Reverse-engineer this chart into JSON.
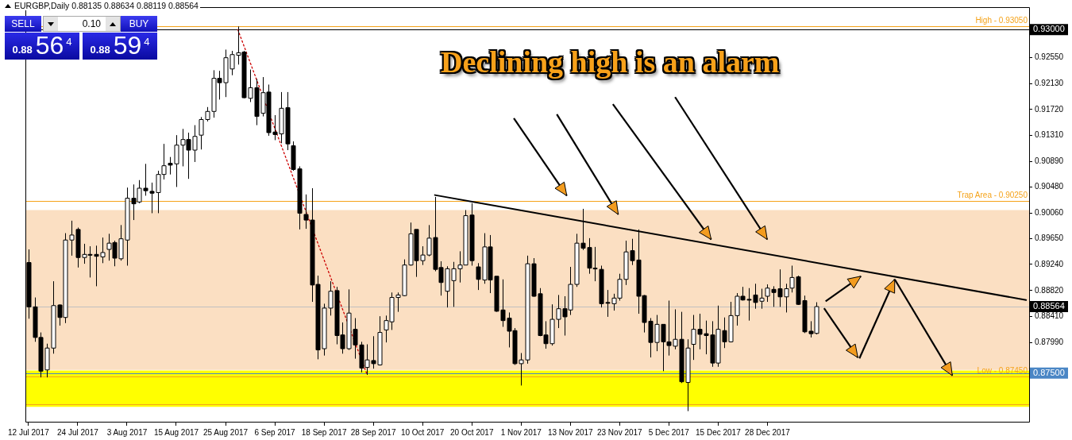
{
  "chart_data": {
    "type": "candlestick",
    "title": "Declining high is an alarm",
    "annotations": [
      "EURGBP,Daily 0.88135 0.88634 0.88119 0.88564",
      "SELL",
      "0.10",
      "BUY",
      "0.88",
      "56",
      "4",
      "0.88",
      "59",
      "4"
    ],
    "categories": [
      "12 Jul 2017",
      null,
      null,
      null,
      null,
      null,
      null,
      null,
      "24 Jul 2017",
      null,
      null,
      null,
      null,
      null,
      null,
      null,
      "3 Aug 2017",
      null,
      null,
      null,
      null,
      null,
      null,
      null,
      "15 Aug 2017",
      null,
      null,
      null,
      null,
      null,
      null,
      null,
      "25 Aug 2017",
      null,
      null,
      null,
      null,
      null,
      null,
      null,
      "6 Sep 2017",
      null,
      null,
      null,
      null,
      null,
      null,
      null,
      "18 Sep 2017",
      null,
      null,
      null,
      null,
      null,
      null,
      null,
      "28 Sep 2017",
      null,
      null,
      null,
      null,
      null,
      null,
      null,
      "10 Oct 2017",
      null,
      null,
      null,
      null,
      null,
      null,
      null,
      "20 Oct 2017",
      null,
      null,
      null,
      null,
      null,
      null,
      null,
      "1 Nov 2017",
      null,
      null,
      null,
      null,
      null,
      null,
      null,
      "13 Nov 2017",
      null,
      null,
      null,
      null,
      null,
      null,
      null,
      "23 Nov 2017",
      null,
      null,
      null,
      null,
      null,
      null,
      null,
      "5 Dec 2017",
      null,
      null,
      null,
      null,
      null,
      null,
      null,
      "15 Dec 2017",
      null,
      null,
      null,
      null,
      null,
      null,
      null,
      "28 Dec 2017",
      null,
      null,
      null,
      null,
      null,
      null,
      null,
      null,
      null,
      null,
      null,
      null,
      null,
      null,
      null,
      null,
      null,
      null,
      null,
      null,
      null,
      null,
      null,
      null,
      null,
      null,
      null,
      null,
      null,
      null,
      null,
      null,
      null,
      null,
      null,
      null,
      null,
      null,
      null,
      null,
      null,
      null
    ],
    "ohlc": [
      [
        0.8927,
        0.8948,
        0.8837,
        0.8856
      ],
      [
        0.8856,
        0.8871,
        0.88,
        0.8807
      ],
      [
        0.8807,
        0.8815,
        0.8743,
        0.8753
      ],
      [
        0.8755,
        0.8797,
        0.8743,
        0.879
      ],
      [
        0.879,
        0.8897,
        0.8781,
        0.8858
      ],
      [
        0.8859,
        0.886,
        0.8826,
        0.8839
      ],
      [
        0.8839,
        0.8974,
        0.883,
        0.8963
      ],
      [
        0.8963,
        0.8994,
        0.8938,
        0.8971
      ],
      [
        0.898,
        0.8983,
        0.8919,
        0.8935
      ],
      [
        0.8935,
        0.8957,
        0.8925,
        0.894
      ],
      [
        0.894,
        0.8953,
        0.8903,
        0.8939
      ],
      [
        0.894,
        0.8954,
        0.8889,
        0.8937
      ],
      [
        0.8936,
        0.8967,
        0.8926,
        0.8943
      ],
      [
        0.8948,
        0.8973,
        0.893,
        0.8958
      ],
      [
        0.8959,
        0.8962,
        0.8921,
        0.8934
      ],
      [
        0.8933,
        0.8987,
        0.893,
        0.8965
      ],
      [
        0.8963,
        0.9047,
        0.8922,
        0.903
      ],
      [
        0.903,
        0.9052,
        0.8995,
        0.9021
      ],
      [
        0.9024,
        0.9059,
        0.9022,
        0.9046
      ],
      [
        0.9046,
        0.9085,
        0.9034,
        0.9042
      ],
      [
        0.9041,
        0.9055,
        0.9006,
        0.9038
      ],
      [
        0.9039,
        0.9074,
        0.9006,
        0.9068
      ],
      [
        0.9068,
        0.9117,
        0.906,
        0.9082
      ],
      [
        0.9086,
        0.9096,
        0.9068,
        0.9083
      ],
      [
        0.9085,
        0.9131,
        0.9048,
        0.9115
      ],
      [
        0.9115,
        0.9141,
        0.9081,
        0.9124
      ],
      [
        0.9124,
        0.9135,
        0.9061,
        0.9107
      ],
      [
        0.9107,
        0.9147,
        0.9088,
        0.9129
      ],
      [
        0.9131,
        0.916,
        0.9108,
        0.9156
      ],
      [
        0.9156,
        0.9176,
        0.9153,
        0.9169
      ],
      [
        0.9169,
        0.9235,
        0.9159,
        0.9222
      ],
      [
        0.9222,
        0.9234,
        0.9188,
        0.9215
      ],
      [
        0.9215,
        0.9268,
        0.9192,
        0.9255
      ],
      [
        0.9237,
        0.9266,
        0.9227,
        0.926
      ],
      [
        0.9259,
        0.9305,
        0.9244,
        0.9263
      ],
      [
        0.9264,
        0.9266,
        0.919,
        0.9191
      ],
      [
        0.919,
        0.9236,
        0.9184,
        0.9207
      ],
      [
        0.9207,
        0.9221,
        0.9147,
        0.9161
      ],
      [
        0.9166,
        0.9224,
        0.9161,
        0.9199
      ],
      [
        0.92,
        0.9212,
        0.913,
        0.9135
      ],
      [
        0.9136,
        0.9163,
        0.9123,
        0.9132
      ],
      [
        0.9133,
        0.92,
        0.9118,
        0.9174
      ],
      [
        0.9175,
        0.92,
        0.9107,
        0.9117
      ],
      [
        0.9114,
        0.9121,
        0.9074,
        0.9076
      ],
      [
        0.9077,
        0.9081,
        0.898,
        0.9006
      ],
      [
        0.9004,
        0.9036,
        0.8981,
        0.8995
      ],
      [
        0.8995,
        0.9046,
        0.8864,
        0.8891
      ],
      [
        0.8892,
        0.8906,
        0.8772,
        0.8787
      ],
      [
        0.8789,
        0.8861,
        0.8778,
        0.8854
      ],
      [
        0.8854,
        0.8897,
        0.8842,
        0.8881
      ],
      [
        0.8882,
        0.8888,
        0.8796,
        0.881
      ],
      [
        0.8811,
        0.8831,
        0.8781,
        0.8789
      ],
      [
        0.8789,
        0.8884,
        0.8787,
        0.8846
      ],
      [
        0.882,
        0.8838,
        0.8773,
        0.8795
      ],
      [
        0.8795,
        0.88,
        0.8751,
        0.8758
      ],
      [
        0.8759,
        0.8796,
        0.8747,
        0.8771
      ],
      [
        0.877,
        0.8809,
        0.8757,
        0.8765
      ],
      [
        0.8763,
        0.8841,
        0.8762,
        0.8815
      ],
      [
        0.8819,
        0.8842,
        0.8799,
        0.8834
      ],
      [
        0.8832,
        0.8879,
        0.8819,
        0.8871
      ],
      [
        0.8871,
        0.8879,
        0.8848,
        0.8875
      ],
      [
        0.8874,
        0.8932,
        0.8873,
        0.8923
      ],
      [
        0.8923,
        0.8991,
        0.8922,
        0.8973
      ],
      [
        0.898,
        0.898,
        0.8904,
        0.893
      ],
      [
        0.893,
        0.8953,
        0.8923,
        0.8939
      ],
      [
        0.8939,
        0.8987,
        0.8937,
        0.8966
      ],
      [
        0.8967,
        0.9032,
        0.8913,
        0.8916
      ],
      [
        0.8919,
        0.8929,
        0.8874,
        0.8895
      ],
      [
        0.8881,
        0.8921,
        0.8855,
        0.8917
      ],
      [
        0.8898,
        0.8928,
        0.8856,
        0.8917
      ],
      [
        0.8917,
        0.8945,
        0.8895,
        0.8923
      ],
      [
        0.8923,
        0.9011,
        0.8923,
        0.9002
      ],
      [
        0.9003,
        0.9022,
        0.8922,
        0.893
      ],
      [
        0.892,
        0.8926,
        0.8883,
        0.89
      ],
      [
        0.8899,
        0.8974,
        0.8893,
        0.8952
      ],
      [
        0.8952,
        0.8971,
        0.8878,
        0.8899
      ],
      [
        0.8905,
        0.8905,
        0.8848,
        0.8849
      ],
      [
        0.8851,
        0.89,
        0.8824,
        0.8834
      ],
      [
        0.8838,
        0.8847,
        0.8791,
        0.8817
      ],
      [
        0.8818,
        0.8822,
        0.8763,
        0.8765
      ],
      [
        0.8765,
        0.8782,
        0.873,
        0.8771
      ],
      [
        0.8771,
        0.8938,
        0.8765,
        0.8925
      ],
      [
        0.8925,
        0.8934,
        0.8872,
        0.8873
      ],
      [
        0.8877,
        0.8886,
        0.8809,
        0.881
      ],
      [
        0.8811,
        0.8833,
        0.8789,
        0.8797
      ],
      [
        0.8797,
        0.886,
        0.8794,
        0.8836
      ],
      [
        0.8836,
        0.8875,
        0.8822,
        0.8853
      ],
      [
        0.8853,
        0.8873,
        0.881,
        0.884
      ],
      [
        0.8851,
        0.892,
        0.8843,
        0.8892
      ],
      [
        0.8892,
        0.8973,
        0.8888,
        0.8958
      ],
      [
        0.8958,
        0.9013,
        0.8947,
        0.895
      ],
      [
        0.8951,
        0.8966,
        0.8909,
        0.8918
      ],
      [
        0.8918,
        0.8952,
        0.8897,
        0.8917
      ],
      [
        0.8916,
        0.8922,
        0.8855,
        0.8861
      ],
      [
        0.8863,
        0.8883,
        0.884,
        0.8862
      ],
      [
        0.8861,
        0.8877,
        0.885,
        0.887
      ],
      [
        0.887,
        0.8909,
        0.8866,
        0.89
      ],
      [
        0.89,
        0.8962,
        0.8891,
        0.8944
      ],
      [
        0.8946,
        0.8965,
        0.8923,
        0.893
      ],
      [
        0.8931,
        0.898,
        0.8845,
        0.8873
      ],
      [
        0.8874,
        0.8875,
        0.8815,
        0.8831
      ],
      [
        0.8833,
        0.8838,
        0.8775,
        0.8799
      ],
      [
        0.8799,
        0.8843,
        0.8785,
        0.8828
      ],
      [
        0.8828,
        0.8828,
        0.8753,
        0.88
      ],
      [
        0.88,
        0.8866,
        0.8778,
        0.8794
      ],
      [
        0.8793,
        0.8852,
        0.8788,
        0.8804
      ],
      [
        0.8804,
        0.8848,
        0.8734,
        0.8736
      ],
      [
        0.8735,
        0.8804,
        0.8689,
        0.879
      ],
      [
        0.8796,
        0.8843,
        0.8771,
        0.882
      ],
      [
        0.882,
        0.8845,
        0.8788,
        0.8812
      ],
      [
        0.8813,
        0.8834,
        0.878,
        0.881
      ],
      [
        0.8811,
        0.8833,
        0.876,
        0.8766
      ],
      [
        0.8766,
        0.8858,
        0.876,
        0.882
      ],
      [
        0.8818,
        0.8839,
        0.879,
        0.88
      ],
      [
        0.88,
        0.8864,
        0.8799,
        0.8842
      ],
      [
        0.8842,
        0.8878,
        0.8826,
        0.8873
      ],
      [
        0.8873,
        0.8888,
        0.8866,
        0.8867
      ],
      [
        0.8868,
        0.8886,
        0.8834,
        0.8867
      ],
      [
        0.8875,
        0.8893,
        0.8853,
        0.8863
      ],
      [
        0.8865,
        0.8885,
        0.8853,
        0.887
      ],
      [
        0.8873,
        0.8892,
        0.8864,
        0.8886
      ],
      [
        0.8884,
        0.8889,
        0.8856,
        0.8879
      ],
      [
        0.8885,
        0.8916,
        0.8856,
        0.8872
      ],
      [
        0.8872,
        0.8893,
        0.8847,
        0.8885
      ],
      [
        0.8886,
        0.8922,
        0.8879,
        0.8903
      ],
      [
        0.8904,
        0.8906,
        0.8859,
        0.886
      ],
      [
        0.8866,
        0.8874,
        0.8814,
        0.8816
      ],
      [
        0.8817,
        0.8833,
        0.8807,
        0.8813
      ],
      [
        0.88135,
        0.88634,
        0.88119,
        0.88564
      ],
      null,
      null,
      null,
      null,
      null,
      null,
      null,
      null,
      null,
      null,
      null,
      null,
      null,
      null,
      null,
      null,
      null,
      null,
      null,
      null,
      null,
      null,
      null,
      null,
      null,
      null,
      null,
      null,
      null,
      null,
      null,
      null,
      null,
      null
    ],
    "series": [
      {
        "type": "line",
        "color": "#000000",
        "values": [
          null,
          null,
          null,
          null,
          null,
          null,
          null,
          null,
          null,
          null,
          null,
          null,
          null,
          null,
          null,
          null,
          null,
          null,
          null,
          null,
          null,
          null,
          null,
          null,
          null,
          null,
          null,
          null,
          null,
          null,
          null,
          null,
          null,
          null,
          null,
          null,
          null,
          null,
          null,
          null,
          null,
          null,
          null,
          null,
          null,
          null,
          null,
          null,
          null,
          null,
          null,
          null,
          null,
          null,
          null,
          null,
          null,
          null,
          null,
          null,
          null,
          null,
          null,
          null,
          null,
          null,
          0.9035,
          null,
          null,
          null,
          null,
          null,
          null,
          null,
          null,
          null,
          null,
          null,
          null,
          null,
          null,
          null,
          null,
          null,
          null,
          null,
          null,
          null,
          null,
          null,
          null,
          null,
          null,
          null,
          null,
          null,
          null,
          null,
          null,
          null,
          null,
          null,
          null,
          null,
          null,
          null,
          null,
          null,
          null,
          null,
          null,
          null,
          null,
          null,
          null,
          null,
          null,
          null,
          null,
          null,
          null,
          null,
          null,
          null,
          null,
          null,
          null,
          null,
          null,
          null,
          null,
          null,
          null,
          null,
          null,
          null,
          null,
          null,
          null,
          null,
          null,
          null,
          null,
          null,
          null,
          null,
          null,
          null,
          null,
          null,
          null,
          null,
          null,
          null,
          null,
          null,
          null,
          null,
          null,
          null,
          null,
          null,
          0.8867
        ]
      },
      {
        "type": "line",
        "color": "#cc0000",
        "line_style": "dotted",
        "values": [
          null,
          null,
          null,
          null,
          null,
          null,
          null,
          null,
          null,
          null,
          null,
          null,
          null,
          null,
          null,
          null,
          null,
          null,
          null,
          null,
          null,
          null,
          null,
          null,
          null,
          null,
          null,
          null,
          null,
          null,
          null,
          null,
          null,
          null,
          0.93,
          null,
          null,
          null,
          null,
          null,
          null,
          null,
          null,
          null,
          null,
          null,
          null,
          null,
          null,
          null,
          null,
          null,
          null,
          null,
          null,
          0.8747,
          null,
          null,
          null,
          null,
          null,
          null,
          null,
          null,
          null,
          null,
          null,
          null,
          null,
          null,
          null,
          null,
          null,
          null,
          null,
          null,
          null,
          null,
          null,
          null,
          null,
          null,
          null,
          null,
          null,
          null,
          null,
          null,
          null,
          null,
          null,
          null,
          null,
          null,
          null,
          null,
          null,
          null,
          null,
          null,
          null,
          null,
          null,
          null,
          null,
          null,
          null,
          null,
          null,
          null,
          null,
          null,
          null,
          null,
          null,
          null,
          null,
          null,
          null,
          null,
          null,
          null,
          null,
          null,
          null,
          null,
          null,
          null,
          null,
          null,
          null,
          null,
          null,
          null,
          null,
          null,
          null,
          null,
          null,
          null,
          null,
          null,
          null,
          null,
          null,
          null,
          null,
          null,
          null,
          null,
          null,
          null,
          null,
          null,
          null,
          null,
          null,
          null,
          null,
          null,
          null,
          null,
          null
        ]
      }
    ],
    "ylim": [
      0.8672,
      0.9336
    ],
    "yticks": [
      {
        "value": 0.93,
        "label": null
      },
      {
        "value": 0.9255,
        "label": "0.92550"
      },
      {
        "value": 0.9213,
        "label": "0.92130"
      },
      {
        "value": 0.9172,
        "label": "0.91720"
      },
      {
        "value": 0.9131,
        "label": "0.91310"
      },
      {
        "value": 0.9089,
        "label": "0.90890"
      },
      {
        "value": 0.9048,
        "label": "0.90480"
      },
      {
        "value": 0.9006,
        "label": "0.90060"
      },
      {
        "value": 0.8965,
        "label": "0.89650"
      },
      {
        "value": 0.8924,
        "label": "0.89240"
      },
      {
        "value": 0.8882,
        "label": "0.88820"
      },
      {
        "value": 0.88564,
        "label": null
      },
      {
        "value": 0.8841,
        "label": "0.88410"
      },
      {
        "value": 0.8799,
        "label": "0.87990"
      },
      {
        "value": 0.875,
        "label": null
      }
    ],
    "ref_lines": [
      {
        "axis": "y",
        "value": 0.9305,
        "label": "High - 0.93050",
        "color": "#f5a31a"
      },
      {
        "axis": "y",
        "value": 0.9025,
        "label": "Trap Area - 0.90250",
        "color": "#f5a31a"
      },
      {
        "axis": "y",
        "value": 0.8745,
        "label": "Low - 0.87450",
        "color": "#f5a31a"
      },
      {
        "axis": "y",
        "value": 0.87,
        "color": "#f5a31a"
      },
      {
        "axis": "y",
        "value": 0.93,
        "label": "0.93000",
        "color": "#000000"
      },
      {
        "axis": "y",
        "value": 0.88564,
        "label": "0.88564",
        "color": "#c0c0c0"
      },
      {
        "axis": "y",
        "value": 0.875,
        "label": "0.87500",
        "color": "#4a86c5"
      }
    ],
    "bands": [
      {
        "axis": "y",
        "from": 0.8755,
        "to": 0.9011,
        "color": "#fbdfc2"
      },
      {
        "axis": "y",
        "from": 0.8696,
        "to": 0.8754,
        "color": "#ffff00"
      }
    ]
  }
}
